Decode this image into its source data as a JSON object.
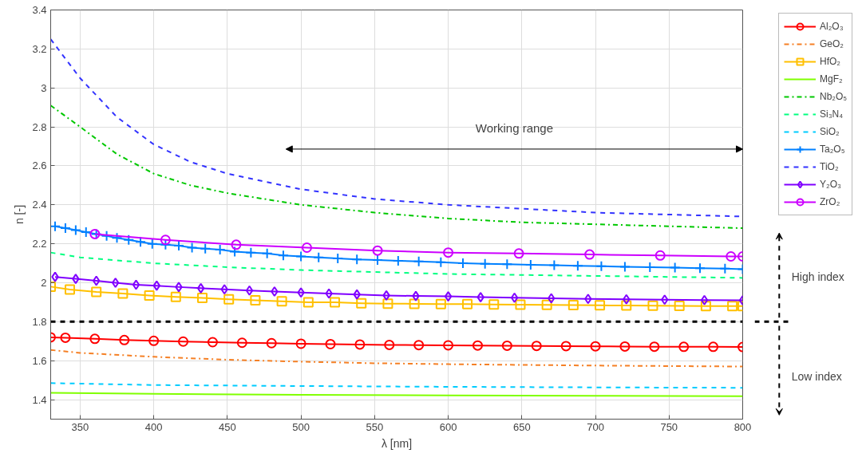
{
  "chart_data": {
    "type": "line",
    "xlabel": "λ [nm]",
    "ylabel": "n [-]",
    "xlim": [
      330,
      800
    ],
    "ylim": [
      1.3,
      3.4
    ],
    "xticks": [
      350,
      400,
      450,
      500,
      550,
      600,
      650,
      700,
      750,
      800
    ],
    "yticks": [
      1.4,
      1.6,
      1.8,
      2,
      2.2,
      2.4,
      2.6,
      2.8,
      3,
      3.2,
      3.4
    ],
    "grid": true,
    "legend": "right",
    "series": [
      {
        "name": "Al₂O₃",
        "color": "#ff0000",
        "marker": "circle",
        "line_style": "solid",
        "x": [
          330,
          340,
          360,
          380,
          400,
          420,
          440,
          460,
          480,
          500,
          520,
          540,
          560,
          580,
          600,
          620,
          640,
          660,
          680,
          700,
          720,
          740,
          760,
          780,
          800
        ],
        "values": [
          1.72,
          1.718,
          1.712,
          1.706,
          1.702,
          1.698,
          1.695,
          1.692,
          1.69,
          1.687,
          1.685,
          1.683,
          1.681,
          1.68,
          1.679,
          1.678,
          1.677,
          1.676,
          1.675,
          1.674,
          1.673,
          1.672,
          1.671,
          1.671,
          1.67
        ]
      },
      {
        "name": "GeO₂",
        "color": "#f58025",
        "marker": "none",
        "line_style": "dashdot",
        "x": [
          330,
          350,
          400,
          450,
          500,
          550,
          600,
          700,
          800
        ],
        "values": [
          1.655,
          1.64,
          1.62,
          1.605,
          1.595,
          1.587,
          1.582,
          1.575,
          1.57
        ]
      },
      {
        "name": "HfO₂",
        "color": "#ffc000",
        "marker": "square",
        "line_style": "solid",
        "x": [
          330,
          343,
          361,
          379,
          397,
          415,
          433,
          451,
          469,
          487,
          505,
          523,
          541,
          559,
          577,
          595,
          613,
          631,
          649,
          667,
          685,
          703,
          721,
          739,
          757,
          775,
          793,
          800
        ],
        "values": [
          1.98,
          1.965,
          1.953,
          1.945,
          1.935,
          1.927,
          1.922,
          1.915,
          1.91,
          1.905,
          1.9,
          1.9,
          1.895,
          1.893,
          1.892,
          1.89,
          1.89,
          1.888,
          1.887,
          1.886,
          1.885,
          1.884,
          1.883,
          1.882,
          1.881,
          1.88,
          1.88,
          1.88
        ]
      },
      {
        "name": "MgF₂",
        "color": "#80ff00",
        "marker": "none",
        "line_style": "solid",
        "x": [
          330,
          400,
          500,
          600,
          700,
          800
        ],
        "values": [
          1.435,
          1.43,
          1.425,
          1.422,
          1.42,
          1.418
        ]
      },
      {
        "name": "Nb₂O₅",
        "color": "#00c800",
        "marker": "none",
        "line_style": "dashdot",
        "x": [
          330,
          350,
          375,
          400,
          425,
          450,
          500,
          550,
          600,
          650,
          700,
          750,
          800
        ],
        "values": [
          2.91,
          2.8,
          2.66,
          2.56,
          2.5,
          2.46,
          2.4,
          2.36,
          2.33,
          2.31,
          2.3,
          2.29,
          2.28
        ]
      },
      {
        "name": "Si₃N₄",
        "color": "#00ff80",
        "marker": "none",
        "line_style": "dashed",
        "x": [
          330,
          350,
          400,
          450,
          500,
          550,
          600,
          700,
          800
        ],
        "values": [
          2.155,
          2.13,
          2.1,
          2.08,
          2.065,
          2.055,
          2.045,
          2.035,
          2.025
        ]
      },
      {
        "name": "SiO₂",
        "color": "#00ccff",
        "marker": "none",
        "line_style": "dashed",
        "x": [
          330,
          400,
          500,
          600,
          700,
          800
        ],
        "values": [
          1.485,
          1.475,
          1.47,
          1.466,
          1.463,
          1.461
        ]
      },
      {
        "name": "Ta₂O₅",
        "color": "#0080ff",
        "marker": "cross",
        "line_style": "solid",
        "x": [
          333,
          340,
          347,
          354,
          361,
          368,
          375,
          383,
          391,
          399,
          408,
          417,
          426,
          435,
          445,
          455,
          466,
          477,
          488,
          500,
          512,
          525,
          538,
          552,
          566,
          580,
          595,
          610,
          625,
          640,
          656,
          672,
          688,
          704,
          720,
          737,
          754,
          771,
          788,
          800
        ],
        "values": [
          2.29,
          2.28,
          2.27,
          2.26,
          2.25,
          2.24,
          2.23,
          2.22,
          2.21,
          2.2,
          2.195,
          2.19,
          2.18,
          2.175,
          2.17,
          2.16,
          2.155,
          2.15,
          2.14,
          2.135,
          2.13,
          2.125,
          2.12,
          2.117,
          2.113,
          2.11,
          2.105,
          2.1,
          2.097,
          2.095,
          2.092,
          2.09,
          2.087,
          2.085,
          2.082,
          2.08,
          2.078,
          2.075,
          2.073,
          2.07
        ]
      },
      {
        "name": "TiO₂",
        "color": "#3333ff",
        "marker": "none",
        "line_style": "dashed",
        "x": [
          330,
          350,
          375,
          400,
          425,
          450,
          500,
          550,
          600,
          650,
          700,
          750,
          800
        ],
        "values": [
          3.25,
          3.05,
          2.85,
          2.71,
          2.62,
          2.56,
          2.48,
          2.43,
          2.4,
          2.38,
          2.36,
          2.35,
          2.34
        ]
      },
      {
        "name": "Y₂O₃",
        "color": "#8000ff",
        "marker": "diamond",
        "line_style": "solid",
        "x": [
          333,
          347,
          361,
          374,
          388,
          402,
          417,
          432,
          448,
          465,
          482,
          500,
          519,
          538,
          558,
          578,
          600,
          622,
          645,
          670,
          695,
          721,
          747,
          774,
          800
        ],
        "values": [
          2.03,
          2.02,
          2.01,
          2.0,
          1.99,
          1.985,
          1.978,
          1.972,
          1.966,
          1.96,
          1.955,
          1.95,
          1.945,
          1.94,
          1.935,
          1.932,
          1.93,
          1.926,
          1.923,
          1.92,
          1.917,
          1.915,
          1.913,
          1.911,
          1.91
        ]
      },
      {
        "name": "ZrO₂",
        "color": "#cc00ff",
        "marker": "circle",
        "line_style": "solid",
        "x": [
          360,
          408,
          456,
          504,
          552,
          600,
          648,
          696,
          744,
          792,
          800
        ],
        "values": [
          2.25,
          2.22,
          2.195,
          2.18,
          2.165,
          2.155,
          2.15,
          2.145,
          2.14,
          2.135,
          2.135
        ]
      }
    ],
    "ref_lines": [
      {
        "axis": "y",
        "value": 1.8,
        "label": null,
        "color": "#000000",
        "line_style": "dashed"
      }
    ],
    "annotations": [
      "Working range",
      "High index",
      "Low index"
    ]
  }
}
